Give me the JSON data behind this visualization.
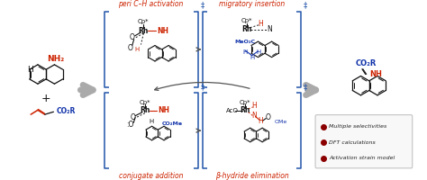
{
  "background_color": "#ffffff",
  "figsize": [
    4.74,
    2.0
  ],
  "dpi": 100,
  "legend_items": [
    {
      "label": "Multiple selectivities",
      "color": "#8B0000"
    },
    {
      "label": "DFT calculations",
      "color": "#8B0000"
    },
    {
      "label": "Activation strain model",
      "color": "#8B0000"
    }
  ],
  "top_labels": [
    "peri C–H activation",
    "migratory insertion"
  ],
  "bottom_labels": [
    "conjugate addition",
    "β-hydride elimination"
  ],
  "label_color": "#cc2200",
  "box_color": "#2255aa",
  "gray_arrow_color": "#999999",
  "black": "#111111",
  "blue": "#1133aa",
  "red": "#cc2200"
}
